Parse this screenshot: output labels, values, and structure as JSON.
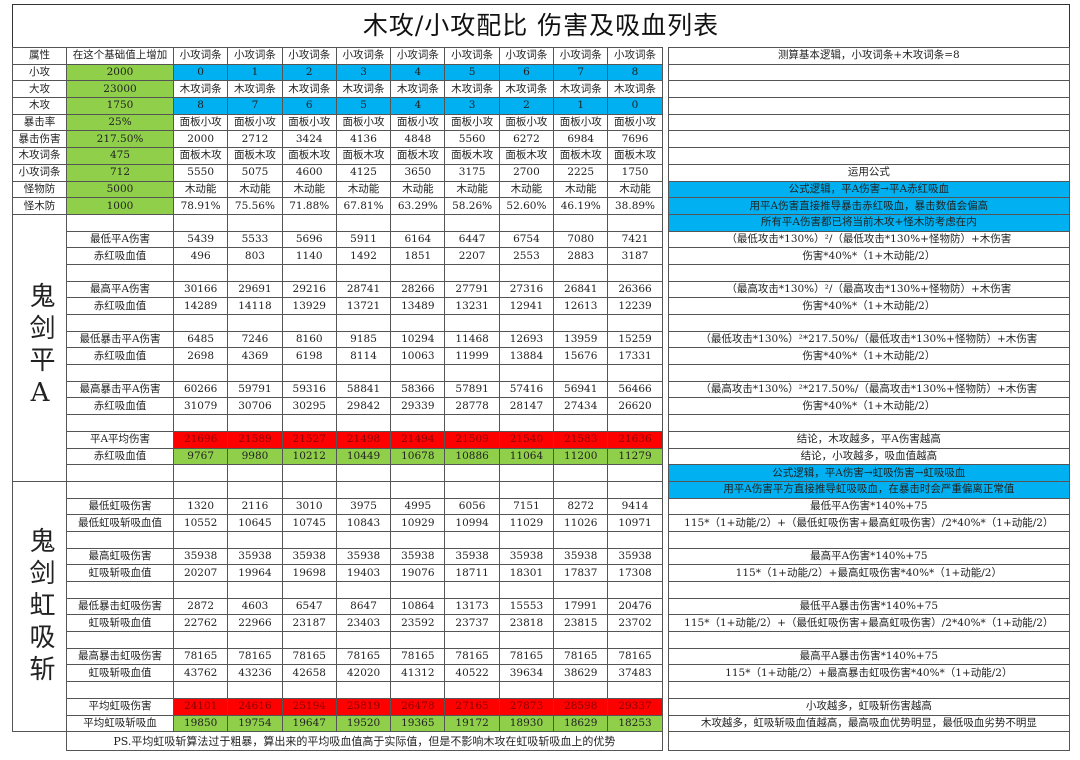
{
  "title": "木攻/小攻配比  伤害及吸血列表",
  "colors": {
    "blue": "#00b0f0",
    "green": "#8fcf4a",
    "red": "#ff0000"
  },
  "header": {
    "attr": "属性",
    "base": "在这个基础值上增加",
    "cols": [
      "小攻词条",
      "小攻词条",
      "小攻词条",
      "小攻词条",
      "小攻词条",
      "小攻词条",
      "小攻词条",
      "小攻词条",
      "小攻词条"
    ],
    "note": "测算基本逻辑，小攻词条+木攻词条=8"
  },
  "params": [
    {
      "label": "小攻",
      "base": "2000",
      "fill": "blue",
      "cells": [
        "0",
        "1",
        "2",
        "3",
        "4",
        "5",
        "6",
        "7",
        "8"
      ],
      "note": "",
      "note_fill": ""
    },
    {
      "label": "大攻",
      "base": "23000",
      "fill": "",
      "cells": [
        "木攻词条",
        "木攻词条",
        "木攻词条",
        "木攻词条",
        "木攻词条",
        "木攻词条",
        "木攻词条",
        "木攻词条",
        "木攻词条"
      ],
      "note": "",
      "note_fill": ""
    },
    {
      "label": "木攻",
      "base": "1750",
      "fill": "blue",
      "cells": [
        "8",
        "7",
        "6",
        "5",
        "4",
        "3",
        "2",
        "1",
        "0"
      ],
      "note": "",
      "note_fill": ""
    },
    {
      "label": "暴击率",
      "base": "25%",
      "fill": "",
      "cells": [
        "面板小攻",
        "面板小攻",
        "面板小攻",
        "面板小攻",
        "面板小攻",
        "面板小攻",
        "面板小攻",
        "面板小攻",
        "面板小攻"
      ],
      "note": "",
      "note_fill": ""
    },
    {
      "label": "暴击伤害",
      "base": "217.50%",
      "fill": "",
      "cells": [
        "2000",
        "2712",
        "3424",
        "4136",
        "4848",
        "5560",
        "6272",
        "6984",
        "7696"
      ],
      "note": "",
      "note_fill": ""
    },
    {
      "label": "木攻词条",
      "base": "475",
      "fill": "",
      "cells": [
        "面板木攻",
        "面板木攻",
        "面板木攻",
        "面板木攻",
        "面板木攻",
        "面板木攻",
        "面板木攻",
        "面板木攻",
        "面板木攻"
      ],
      "note": "",
      "note_fill": ""
    },
    {
      "label": "小攻词条",
      "base": "712",
      "fill": "",
      "cells": [
        "5550",
        "5075",
        "4600",
        "4125",
        "3650",
        "3175",
        "2700",
        "2225",
        "1750"
      ],
      "note": "运用公式",
      "note_fill": ""
    },
    {
      "label": "怪物防",
      "base": "5000",
      "fill": "",
      "cells": [
        "木动能",
        "木动能",
        "木动能",
        "木动能",
        "木动能",
        "木动能",
        "木动能",
        "木动能",
        "木动能"
      ],
      "note": "公式逻辑，平A伤害→平A赤红吸血",
      "note_fill": "blue"
    },
    {
      "label": "怪木防",
      "base": "1000",
      "fill": "",
      "cells": [
        "78.91%",
        "75.56%",
        "71.88%",
        "67.81%",
        "63.29%",
        "58.26%",
        "52.60%",
        "46.19%",
        "38.89%"
      ],
      "note": "用平A伤害直接推导暴击赤红吸血，暴击数值会偏高",
      "note_fill": "blue"
    }
  ],
  "sections": [
    {
      "name": "鬼剑平A",
      "rows": [
        {
          "label": "",
          "fill": "",
          "cells": [],
          "note": "所有平A伤害都已将当前木攻+怪木防考虑在内",
          "note_fill": "blue"
        },
        {
          "label": "最低平A伤害",
          "fill": "",
          "cells": [
            "5439",
            "5533",
            "5696",
            "5911",
            "6164",
            "6447",
            "6754",
            "7080",
            "7421"
          ],
          "note": "（最低攻击*130%）²/（最低攻击*130%+怪物防）+木伤害",
          "note_fill": ""
        },
        {
          "label": "赤红吸血值",
          "fill": "",
          "cells": [
            "496",
            "803",
            "1140",
            "1492",
            "1851",
            "2207",
            "2553",
            "2883",
            "3187"
          ],
          "note": "伤害*40%*（1+木动能/2）",
          "note_fill": ""
        },
        {
          "label": "",
          "fill": "",
          "cells": [],
          "note": "",
          "note_fill": ""
        },
        {
          "label": "最高平A伤害",
          "fill": "",
          "cells": [
            "30166",
            "29691",
            "29216",
            "28741",
            "28266",
            "27791",
            "27316",
            "26841",
            "26366"
          ],
          "note": "（最高攻击*130%）²/（最高攻击*130%+怪物防）+木伤害",
          "note_fill": ""
        },
        {
          "label": "赤红吸血值",
          "fill": "",
          "cells": [
            "14289",
            "14118",
            "13929",
            "13721",
            "13489",
            "13231",
            "12941",
            "12613",
            "12239"
          ],
          "note": "伤害*40%*（1+木动能/2）",
          "note_fill": ""
        },
        {
          "label": "",
          "fill": "",
          "cells": [],
          "note": "",
          "note_fill": ""
        },
        {
          "label": "最低暴击平A伤害",
          "fill": "",
          "cells": [
            "6485",
            "7246",
            "8160",
            "9185",
            "10294",
            "11468",
            "12693",
            "13959",
            "15259"
          ],
          "note": "（最低攻击*130%）²*217.50%/（最低攻击*130%+怪物防）+木伤害",
          "note_fill": ""
        },
        {
          "label": "赤红吸血值",
          "fill": "",
          "cells": [
            "2698",
            "4369",
            "6198",
            "8114",
            "10063",
            "11999",
            "13884",
            "15676",
            "17331"
          ],
          "note": "伤害*40%*（1+木动能/2）",
          "note_fill": ""
        },
        {
          "label": "",
          "fill": "",
          "cells": [],
          "note": "",
          "note_fill": ""
        },
        {
          "label": "最高暴击平A伤害",
          "fill": "",
          "cells": [
            "60266",
            "59791",
            "59316",
            "58841",
            "58366",
            "57891",
            "57416",
            "56941",
            "56466"
          ],
          "note": "（最高攻击*130%）²*217.50%/（最高攻击*130%+怪物防）+木伤害",
          "note_fill": ""
        },
        {
          "label": "赤红吸血值",
          "fill": "",
          "cells": [
            "31079",
            "30706",
            "30295",
            "29842",
            "29339",
            "28778",
            "28147",
            "27434",
            "26620"
          ],
          "note": "伤害*40%*（1+木动能/2）",
          "note_fill": ""
        },
        {
          "label": "",
          "fill": "",
          "cells": [],
          "note": "",
          "note_fill": ""
        },
        {
          "label": "平A平均伤害",
          "fill": "red",
          "cells": [
            "21696",
            "21589",
            "21527",
            "21498",
            "21494",
            "21509",
            "21540",
            "21583",
            "21636"
          ],
          "note": "结论，木攻越多，平A伤害越高",
          "note_fill": ""
        },
        {
          "label": "赤红吸血值",
          "fill": "green",
          "cells": [
            "9767",
            "9980",
            "10212",
            "10449",
            "10678",
            "10886",
            "11064",
            "11200",
            "11279"
          ],
          "note": "结论，小攻越多，吸血值越高",
          "note_fill": ""
        },
        {
          "label": "",
          "fill": "",
          "cells": [],
          "note": "公式逻辑，平A伤害→虹吸伤害→虹吸吸血",
          "note_fill": "blue"
        }
      ]
    },
    {
      "name": "鬼剑虹吸斩",
      "rows": [
        {
          "label": "",
          "fill": "",
          "cells": [],
          "note": "用平A伤害平方直接推导虹吸吸血，在暴击时会严重偏离正常值",
          "note_fill": "blue"
        },
        {
          "label": "最低虹吸伤害",
          "fill": "",
          "cells": [
            "1320",
            "2116",
            "3010",
            "3975",
            "4995",
            "6056",
            "7151",
            "8272",
            "9414"
          ],
          "note": "最低平A伤害*140%+75",
          "note_fill": ""
        },
        {
          "label": "最低虹吸斩吸血值",
          "fill": "",
          "cells": [
            "10552",
            "10645",
            "10745",
            "10843",
            "10929",
            "10994",
            "11029",
            "11026",
            "10971"
          ],
          "note": "115*（1+动能/2）+（最低虹吸伤害+最高虹吸伤害）/2*40%*（1+动能/2）",
          "note_fill": ""
        },
        {
          "label": "",
          "fill": "",
          "cells": [],
          "note": "",
          "note_fill": ""
        },
        {
          "label": "最高虹吸伤害",
          "fill": "",
          "cells": [
            "35938",
            "35938",
            "35938",
            "35938",
            "35938",
            "35938",
            "35938",
            "35938",
            "35938"
          ],
          "note": "最高平A伤害*140%+75",
          "note_fill": ""
        },
        {
          "label": "虹吸斩吸血值",
          "fill": "",
          "cells": [
            "20207",
            "19964",
            "19698",
            "19403",
            "19076",
            "18711",
            "18301",
            "17837",
            "17308"
          ],
          "note": "115*（1+动能/2）+最高虹吸伤害*40%*（1+动能/2）",
          "note_fill": ""
        },
        {
          "label": "",
          "fill": "",
          "cells": [],
          "note": "",
          "note_fill": ""
        },
        {
          "label": "最低暴击虹吸伤害",
          "fill": "",
          "cells": [
            "2872",
            "4603",
            "6547",
            "8647",
            "10864",
            "13173",
            "15553",
            "17991",
            "20476"
          ],
          "note": "最低平A暴击伤害*140%+75",
          "note_fill": ""
        },
        {
          "label": "虹吸斩吸血值",
          "fill": "",
          "cells": [
            "22762",
            "22966",
            "23187",
            "23403",
            "23592",
            "23737",
            "23818",
            "23815",
            "23702"
          ],
          "note": "115*（1+动能/2）+（最低虹吸伤害+最高虹吸伤害）/2*40%*（1+动能/2）",
          "note_fill": ""
        },
        {
          "label": "",
          "fill": "",
          "cells": [],
          "note": "",
          "note_fill": ""
        },
        {
          "label": "最高暴击虹吸伤害",
          "fill": "",
          "cells": [
            "78165",
            "78165",
            "78165",
            "78165",
            "78165",
            "78165",
            "78165",
            "78165",
            "78165"
          ],
          "note": "最高平A暴击伤害*140%+75",
          "note_fill": ""
        },
        {
          "label": "虹吸斩吸血值",
          "fill": "",
          "cells": [
            "43762",
            "43236",
            "42658",
            "42020",
            "41312",
            "40522",
            "39634",
            "38629",
            "37483"
          ],
          "note": "115*（1+动能/2）+最高暴击虹吸伤害*40%*（1+动能/2）",
          "note_fill": ""
        },
        {
          "label": "",
          "fill": "",
          "cells": [],
          "note": "",
          "note_fill": ""
        },
        {
          "label": "平均虹吸伤害",
          "fill": "red",
          "cells": [
            "24101",
            "24616",
            "25194",
            "25819",
            "26478",
            "27165",
            "27873",
            "28598",
            "29337"
          ],
          "note": "小攻越多，虹吸斩伤害越高",
          "note_fill": ""
        },
        {
          "label": "平均虹吸斩吸血",
          "fill": "green",
          "cells": [
            "19850",
            "19754",
            "19647",
            "19520",
            "19365",
            "19172",
            "18930",
            "18629",
            "18253"
          ],
          "note": "木攻越多，虹吸斩吸血值越高，最高吸血优势明显，最低吸血劣势不明显",
          "note_fill": ""
        }
      ]
    }
  ],
  "footnote": "PS.平均虹吸斩算法过于粗暴，算出来的平均吸血值高于实际值，但是不影响木攻在虹吸斩吸血上的优势"
}
